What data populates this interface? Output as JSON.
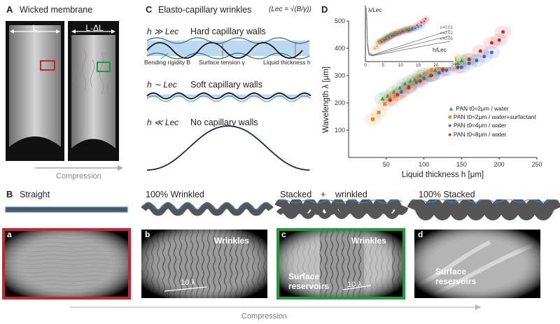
{
  "panelA": {
    "letter": "A",
    "title": "Wicked membrane",
    "left_label": "L",
    "right_label": "L-ΔL",
    "arrow_label": "Compression"
  },
  "panelC": {
    "letter": "C",
    "title": "Elasto-capillary wrinkles",
    "formula": "(Lec = √(B/γ))",
    "rows": [
      {
        "condition": "h ≫ Lec",
        "label": "Hard capillary walls"
      },
      {
        "condition": "h ∼ Lec",
        "label": "Soft capillary walls"
      },
      {
        "condition": "h ≪ Lec",
        "label": "No capillary walls"
      }
    ],
    "annotations": [
      "Bending rigidity B",
      "Surface tension γ",
      "Liquid thickness h"
    ]
  },
  "panelD": {
    "letter": "D",
    "colors": {
      "green": "#3fa046",
      "orange": "#e8862a",
      "blue": "#2f6fd0",
      "red": "#d2262e"
    }
  },
  "chart_data": [
    {
      "type": "scatter",
      "title": "",
      "xlabel": "Liquid thickness h [μm]",
      "ylabel": "Wavelength λ [μm]",
      "xlim": [
        0,
        250
      ],
      "ylim": [
        0,
        500
      ],
      "xticks": [
        "50",
        "100",
        "150",
        "200",
        "250"
      ],
      "yticks": [
        "100",
        "200",
        "300",
        "400",
        "500"
      ],
      "legend_position": "bottom-right",
      "series": [
        {
          "name": "PAN t0≈2μm / water",
          "marker": "triangle",
          "color": "#3fa046",
          "x": [
            45,
            52,
            60,
            68,
            75,
            82,
            88,
            95,
            100,
            108,
            115,
            125,
            135,
            145,
            150,
            160
          ],
          "y": [
            215,
            225,
            240,
            255,
            270,
            280,
            285,
            300,
            305,
            300,
            320,
            330,
            340,
            345,
            355,
            360
          ]
        },
        {
          "name": "PAN t0≈2μm / water+surfactant",
          "marker": "square",
          "color": "#e8862a",
          "x": [
            32,
            40,
            48,
            55,
            62,
            70,
            78,
            85,
            92,
            100,
            110,
            120,
            130,
            140
          ],
          "y": [
            140,
            165,
            195,
            215,
            225,
            240,
            255,
            270,
            285,
            300,
            320,
            330,
            345,
            360
          ]
        },
        {
          "name": "PAN t0≈4μm / water",
          "marker": "circle",
          "color": "#2f6fd0",
          "x": [
            70,
            80,
            90,
            100,
            110,
            120,
            130,
            140,
            150,
            160,
            170,
            180,
            190
          ],
          "y": [
            240,
            260,
            275,
            290,
            300,
            310,
            320,
            340,
            330,
            345,
            355,
            370,
            385
          ]
        },
        {
          "name": "PAN t0≈8μm / water",
          "marker": "circle",
          "color": "#d2262e",
          "x": [
            55,
            65,
            80,
            95,
            110,
            125,
            145,
            160,
            175,
            190,
            200,
            205
          ],
          "y": [
            210,
            230,
            255,
            280,
            300,
            320,
            330,
            360,
            390,
            420,
            430,
            460
          ]
        }
      ]
    },
    {
      "type": "line",
      "title": "",
      "xlabel": "h/Lec",
      "ylabel": "λ/Lec",
      "xlim": [
        0,
        25
      ],
      "xticks": [
        "0",
        "5",
        "10",
        "15",
        "20",
        "25"
      ],
      "annotations": [
        "ε=0.01",
        "ε=0.02",
        "ε=0.05"
      ],
      "series": [
        {
          "label": "ε=0.01",
          "x": [
            0.3,
            0.6,
            1,
            2,
            5,
            10,
            15,
            20,
            24
          ],
          "y": [
            48,
            18,
            8,
            6,
            9,
            14,
            19,
            24,
            28
          ]
        },
        {
          "label": "ε=0.02",
          "x": [
            0.3,
            0.6,
            1,
            2,
            5,
            10,
            15,
            20,
            24
          ],
          "y": [
            44,
            16,
            7,
            5.5,
            8,
            12,
            16,
            20,
            23
          ]
        },
        {
          "label": "ε=0.05",
          "x": [
            0.3,
            0.6,
            1,
            2,
            5,
            10,
            15,
            20,
            24
          ],
          "y": [
            40,
            14,
            6,
            5,
            7,
            10,
            13,
            16,
            18
          ]
        }
      ]
    }
  ],
  "panelB": {
    "letter": "B",
    "states": [
      "Straight",
      "100% Wrinkled",
      "Stacked",
      "+",
      "wrinkled",
      "100% Stacked"
    ],
    "photos": [
      {
        "letter": "a",
        "annotations": []
      },
      {
        "letter": "b",
        "annotations": [
          "Wrinkles",
          "10 λ"
        ]
      },
      {
        "letter": "c",
        "annotations": [
          "Wrinkles",
          "Surface reservoirs",
          "10 λ"
        ]
      },
      {
        "letter": "d",
        "annotations": [
          "Surface reservoirs"
        ]
      }
    ],
    "arrow_label": "Compression"
  }
}
